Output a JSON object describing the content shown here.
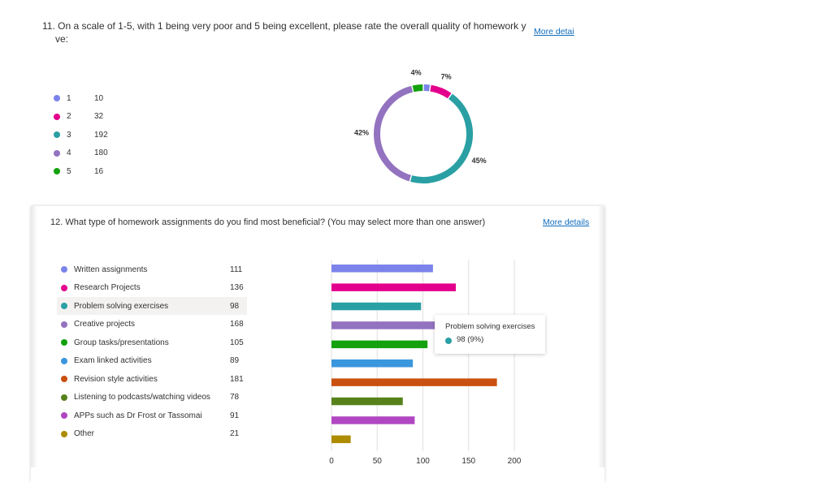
{
  "q11": {
    "title_line1": "11. On a scale of 1-5, with 1 being very poor and 5 being excellent, please rate the overall quality of homework you recei",
    "title_line2": "ve:",
    "more_details": "More detai",
    "legend": [
      {
        "label": "1",
        "count": "10",
        "color": "#7b83eb"
      },
      {
        "label": "2",
        "count": "32",
        "color": "#e3008c"
      },
      {
        "label": "3",
        "count": "192",
        "color": "#2aa0a4"
      },
      {
        "label": "4",
        "count": "180",
        "color": "#9373c0"
      },
      {
        "label": "5",
        "count": "16",
        "color": "#13a10e"
      }
    ]
  },
  "q12": {
    "title": "12. What type of homework assignments do you find most beneficial? (You may select more than one answer)",
    "more_details": "More details",
    "legend": [
      {
        "label": "Written assignments",
        "count": "111",
        "color": "#7b83eb"
      },
      {
        "label": "Research Projects",
        "count": "136",
        "color": "#e3008c"
      },
      {
        "label": "Problem solving exercises",
        "count": "98",
        "color": "#2aa0a4"
      },
      {
        "label": "Creative projects",
        "count": "168",
        "color": "#9373c0"
      },
      {
        "label": "Group tasks/presentations",
        "count": "105",
        "color": "#13a10e"
      },
      {
        "label": "Exam linked activities",
        "count": "89",
        "color": "#3a96dd"
      },
      {
        "label": "Revision style activities",
        "count": "181",
        "color": "#ca5010"
      },
      {
        "label": "Listening to podcasts/watching videos",
        "count": "78",
        "color": "#57811b"
      },
      {
        "label": "APPs such as Dr Frost or Tassomai",
        "count": "91",
        "color": "#b146c2"
      },
      {
        "label": "Other",
        "count": "21",
        "color": "#ae8c00"
      }
    ],
    "tooltip": {
      "title": "Problem solving exercises",
      "value": "98 (9%)",
      "color": "#2aa0a4"
    }
  },
  "chart_data": [
    {
      "type": "pie",
      "categories": [
        "1",
        "2",
        "3",
        "4",
        "5"
      ],
      "values": [
        10,
        32,
        192,
        180,
        16
      ],
      "data_labels": [
        "",
        "7%",
        "45%",
        "42%",
        "4%"
      ],
      "colors": [
        "#7b83eb",
        "#e3008c",
        "#2aa0a4",
        "#9373c0",
        "#13a10e"
      ],
      "donut": true
    },
    {
      "type": "bar",
      "orientation": "horizontal",
      "categories": [
        "Written assignments",
        "Research Projects",
        "Problem solving exercises",
        "Creative projects",
        "Group tasks/presentations",
        "Exam linked activities",
        "Revision style activities",
        "Listening to podcasts/watching videos",
        "APPs such as Dr Frost or Tassomai",
        "Other"
      ],
      "values": [
        111,
        136,
        98,
        168,
        105,
        89,
        181,
        78,
        91,
        21
      ],
      "colors": [
        "#7b83eb",
        "#e3008c",
        "#2aa0a4",
        "#9373c0",
        "#13a10e",
        "#3a96dd",
        "#ca5010",
        "#57811b",
        "#b146c2",
        "#ae8c00"
      ],
      "xlim": [
        0,
        200
      ],
      "xticks": [
        "0",
        "50",
        "100",
        "150",
        "200"
      ],
      "grid": true
    }
  ]
}
